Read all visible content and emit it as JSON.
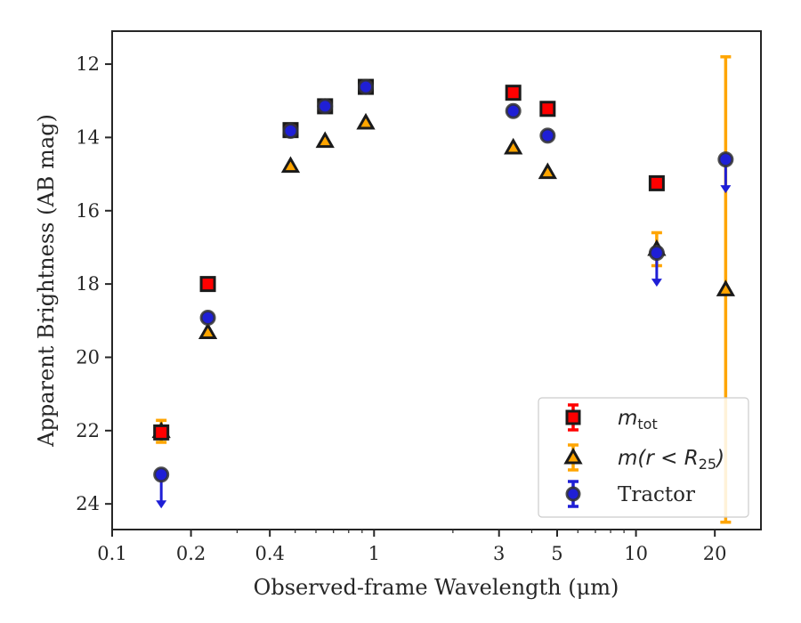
{
  "chart_data": {
    "type": "scatter",
    "xlabel": "Observed-frame Wavelength (μm)",
    "ylabel": "Apparent Brightness (AB mag)",
    "xscale": "log",
    "xlim": [
      0.1,
      30
    ],
    "ylim": [
      24.7,
      11.1
    ],
    "y_inverted": true,
    "x_ticks": [
      {
        "value": 0.1,
        "label": "0.1"
      },
      {
        "value": 0.2,
        "label": "0.2"
      },
      {
        "value": 0.4,
        "label": "0.4"
      },
      {
        "value": 1,
        "label": "1"
      },
      {
        "value": 3,
        "label": "3"
      },
      {
        "value": 5,
        "label": "5"
      },
      {
        "value": 10,
        "label": "10"
      },
      {
        "value": 20,
        "label": "20"
      }
    ],
    "y_ticks": [
      12,
      14,
      16,
      18,
      20,
      22,
      24
    ],
    "grid": false,
    "legend_position": "bottom-right",
    "series": [
      {
        "name_base": "m",
        "name_sub": "tot",
        "marker": "square",
        "color": "#ff0000",
        "edge_color": "#1a1a1a",
        "error_color": "#ff0000",
        "points": [
          {
            "x": 0.154,
            "y": 22.05
          },
          {
            "x": 0.232,
            "y": 18.0
          },
          {
            "x": 0.48,
            "y": 13.8
          },
          {
            "x": 0.65,
            "y": 13.15
          },
          {
            "x": 0.93,
            "y": 12.62
          },
          {
            "x": 3.4,
            "y": 12.78
          },
          {
            "x": 4.6,
            "y": 13.22
          },
          {
            "x": 12.0,
            "y": 15.25
          }
        ]
      },
      {
        "name_base": "m(r < R",
        "name_sub": "25",
        "name_end": ")",
        "marker": "triangle",
        "color": "#ffa500",
        "edge_color": "#1a1a1a",
        "error_color": "#ffa500",
        "points": [
          {
            "x": 0.154,
            "y": 22.02,
            "yerr": 0.3
          },
          {
            "x": 0.232,
            "y": 19.32
          },
          {
            "x": 0.48,
            "y": 14.78
          },
          {
            "x": 0.65,
            "y": 14.1
          },
          {
            "x": 0.93,
            "y": 13.6
          },
          {
            "x": 3.4,
            "y": 14.28
          },
          {
            "x": 4.6,
            "y": 14.95
          },
          {
            "x": 12.0,
            "y": 17.05,
            "yerr": 0.45
          },
          {
            "x": 22.0,
            "y": 18.15,
            "yerr_low": 6.35,
            "yerr_high": 6.35
          }
        ]
      },
      {
        "name": "Tractor",
        "marker": "circle",
        "color": "#1f1fd6",
        "edge_color": "#333333",
        "error_color": "#1f1fd6",
        "points": [
          {
            "x": 0.154,
            "y": 23.2,
            "upper_limit": true
          },
          {
            "x": 0.232,
            "y": 18.92
          },
          {
            "x": 0.48,
            "y": 13.82
          },
          {
            "x": 0.65,
            "y": 13.15
          },
          {
            "x": 0.93,
            "y": 12.62
          },
          {
            "x": 3.4,
            "y": 13.28
          },
          {
            "x": 4.6,
            "y": 13.95
          },
          {
            "x": 12.0,
            "y": 17.15,
            "upper_limit": true
          },
          {
            "x": 22.0,
            "y": 14.6,
            "upper_limit": true
          }
        ]
      }
    ]
  }
}
